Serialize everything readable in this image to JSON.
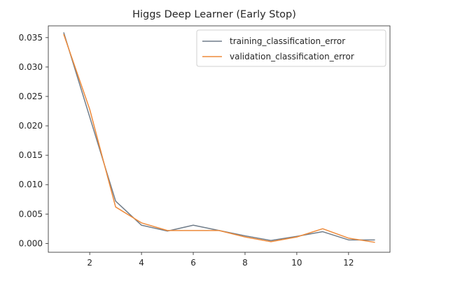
{
  "chart_data": {
    "type": "line",
    "title": "Higgs Deep Learner (Early Stop)",
    "xlabel": "",
    "ylabel": "",
    "x": [
      1,
      2,
      3,
      4,
      5,
      6,
      7,
      8,
      9,
      10,
      11,
      12,
      13
    ],
    "xlim": [
      0.4,
      13.6
    ],
    "ylim": [
      -0.0015,
      0.037
    ],
    "xticks": [
      2,
      4,
      6,
      8,
      10,
      12
    ],
    "yticks": [
      0.0,
      0.005,
      0.01,
      0.015,
      0.02,
      0.025,
      0.03,
      0.035
    ],
    "xtick_labels": [
      "2",
      "4",
      "6",
      "8",
      "10",
      "12"
    ],
    "ytick_labels": [
      "0.000",
      "0.005",
      "0.010",
      "0.015",
      "0.020",
      "0.025",
      "0.030",
      "0.035"
    ],
    "grid": false,
    "legend_position": "top-right",
    "series": [
      {
        "name": "training_classification_error",
        "color": "#707d8a",
        "values": [
          0.0358,
          0.0215,
          0.0072,
          0.0031,
          0.0021,
          0.0031,
          0.0022,
          0.0013,
          0.0005,
          0.0012,
          0.002,
          0.0006,
          0.0006
        ]
      },
      {
        "name": "validation_classification_error",
        "color": "#ee8a3a",
        "values": [
          0.0355,
          0.0228,
          0.0062,
          0.0035,
          0.0022,
          0.0022,
          0.0022,
          0.0011,
          0.0003,
          0.0011,
          0.0025,
          0.0009,
          0.0002
        ]
      }
    ]
  }
}
